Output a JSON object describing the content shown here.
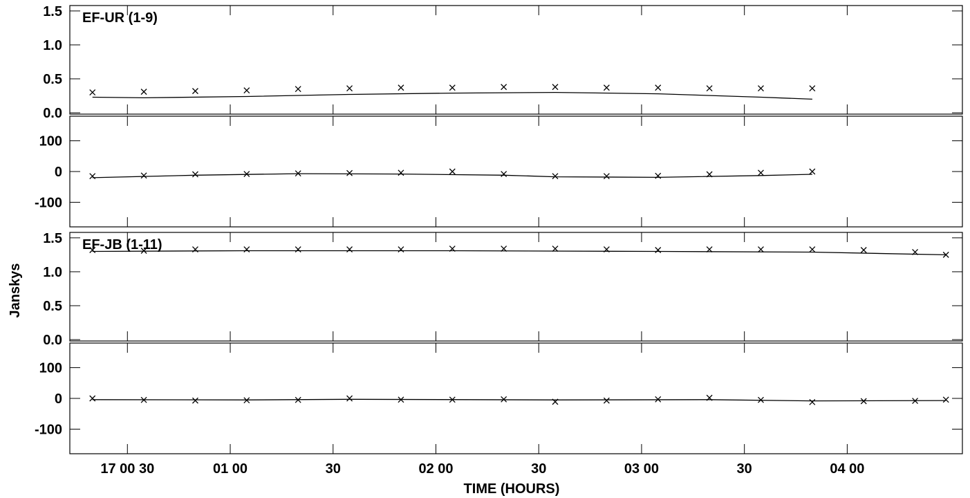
{
  "chart_data": [
    {
      "type": "scatter",
      "baseline": "EF-UR (1-9)",
      "quantity": "amplitude",
      "title": "EF-UR (1-9)",
      "ylim": [
        -0.02,
        1.58
      ],
      "yticks": [
        0.0,
        0.5,
        1.0,
        1.5
      ],
      "ytick_labels": [
        "0.0",
        "0.5",
        "1.0",
        "1.5"
      ],
      "points": [
        {
          "x": 0.33,
          "y": 0.3
        },
        {
          "x": 0.58,
          "y": 0.31
        },
        {
          "x": 0.83,
          "y": 0.32
        },
        {
          "x": 1.08,
          "y": 0.33
        },
        {
          "x": 1.33,
          "y": 0.35
        },
        {
          "x": 1.58,
          "y": 0.36
        },
        {
          "x": 1.83,
          "y": 0.37
        },
        {
          "x": 2.08,
          "y": 0.37
        },
        {
          "x": 2.33,
          "y": 0.38
        },
        {
          "x": 2.58,
          "y": 0.38
        },
        {
          "x": 2.83,
          "y": 0.37
        },
        {
          "x": 3.08,
          "y": 0.37
        },
        {
          "x": 3.33,
          "y": 0.36
        },
        {
          "x": 3.58,
          "y": 0.36
        },
        {
          "x": 3.83,
          "y": 0.36
        }
      ],
      "model": [
        {
          "x": 0.33,
          "y": 0.23
        },
        {
          "x": 0.58,
          "y": 0.22
        },
        {
          "x": 1.08,
          "y": 0.24
        },
        {
          "x": 1.58,
          "y": 0.27
        },
        {
          "x": 2.08,
          "y": 0.29
        },
        {
          "x": 2.58,
          "y": 0.3
        },
        {
          "x": 3.08,
          "y": 0.28
        },
        {
          "x": 3.58,
          "y": 0.23
        },
        {
          "x": 3.83,
          "y": 0.2
        }
      ]
    },
    {
      "type": "scatter",
      "baseline": "EF-UR (1-9)",
      "quantity": "phase",
      "ylim": [
        -180,
        180
      ],
      "yticks": [
        -100,
        0,
        100
      ],
      "ytick_labels": [
        "-100",
        "0",
        "100"
      ],
      "points": [
        {
          "x": 0.33,
          "y": -15
        },
        {
          "x": 0.58,
          "y": -13
        },
        {
          "x": 0.83,
          "y": -9
        },
        {
          "x": 1.08,
          "y": -8
        },
        {
          "x": 1.33,
          "y": -6
        },
        {
          "x": 1.58,
          "y": -5
        },
        {
          "x": 1.83,
          "y": -4
        },
        {
          "x": 2.08,
          "y": 0
        },
        {
          "x": 2.33,
          "y": -8
        },
        {
          "x": 2.58,
          "y": -15
        },
        {
          "x": 2.83,
          "y": -15
        },
        {
          "x": 3.08,
          "y": -14
        },
        {
          "x": 3.33,
          "y": -9
        },
        {
          "x": 3.58,
          "y": -4
        },
        {
          "x": 3.83,
          "y": 0
        }
      ],
      "model": [
        {
          "x": 0.33,
          "y": -20
        },
        {
          "x": 0.83,
          "y": -12
        },
        {
          "x": 1.33,
          "y": -7
        },
        {
          "x": 1.83,
          "y": -8
        },
        {
          "x": 2.33,
          "y": -12
        },
        {
          "x": 2.58,
          "y": -17
        },
        {
          "x": 3.08,
          "y": -19
        },
        {
          "x": 3.58,
          "y": -13
        },
        {
          "x": 3.83,
          "y": -9
        }
      ]
    },
    {
      "type": "scatter",
      "baseline": "EF-JB (1-11)",
      "quantity": "amplitude",
      "title": "EF-JB (1-11)",
      "ylim": [
        -0.02,
        1.58
      ],
      "yticks": [
        0.0,
        0.5,
        1.0,
        1.5
      ],
      "ytick_labels": [
        "0.0",
        "0.5",
        "1.0",
        "1.5"
      ],
      "points": [
        {
          "x": 0.33,
          "y": 1.32
        },
        {
          "x": 0.58,
          "y": 1.31
        },
        {
          "x": 0.83,
          "y": 1.33
        },
        {
          "x": 1.08,
          "y": 1.33
        },
        {
          "x": 1.33,
          "y": 1.33
        },
        {
          "x": 1.58,
          "y": 1.33
        },
        {
          "x": 1.83,
          "y": 1.33
        },
        {
          "x": 2.08,
          "y": 1.34
        },
        {
          "x": 2.33,
          "y": 1.34
        },
        {
          "x": 2.58,
          "y": 1.34
        },
        {
          "x": 2.83,
          "y": 1.33
        },
        {
          "x": 3.08,
          "y": 1.32
        },
        {
          "x": 3.33,
          "y": 1.33
        },
        {
          "x": 3.58,
          "y": 1.33
        },
        {
          "x": 3.83,
          "y": 1.33
        },
        {
          "x": 4.08,
          "y": 1.32
        },
        {
          "x": 4.33,
          "y": 1.29
        },
        {
          "x": 4.48,
          "y": 1.25
        }
      ],
      "model": [
        {
          "x": 0.33,
          "y": 1.3
        },
        {
          "x": 1.08,
          "y": 1.31
        },
        {
          "x": 2.08,
          "y": 1.31
        },
        {
          "x": 3.08,
          "y": 1.3
        },
        {
          "x": 3.83,
          "y": 1.29
        },
        {
          "x": 4.48,
          "y": 1.25
        }
      ]
    },
    {
      "type": "scatter",
      "baseline": "EF-JB (1-11)",
      "quantity": "phase",
      "ylim": [
        -180,
        180
      ],
      "yticks": [
        -100,
        0,
        100
      ],
      "ytick_labels": [
        "-100",
        "0",
        "100"
      ],
      "points": [
        {
          "x": 0.33,
          "y": 0
        },
        {
          "x": 0.58,
          "y": -5
        },
        {
          "x": 0.83,
          "y": -7
        },
        {
          "x": 1.08,
          "y": -6
        },
        {
          "x": 1.33,
          "y": -5
        },
        {
          "x": 1.58,
          "y": 0
        },
        {
          "x": 1.83,
          "y": -4
        },
        {
          "x": 2.08,
          "y": -4
        },
        {
          "x": 2.33,
          "y": -3
        },
        {
          "x": 2.58,
          "y": -11
        },
        {
          "x": 2.83,
          "y": -7
        },
        {
          "x": 3.08,
          "y": -3
        },
        {
          "x": 3.33,
          "y": 2
        },
        {
          "x": 3.58,
          "y": -5
        },
        {
          "x": 3.83,
          "y": -12
        },
        {
          "x": 4.08,
          "y": -9
        },
        {
          "x": 4.33,
          "y": -8
        },
        {
          "x": 4.48,
          "y": -4
        }
      ],
      "model": [
        {
          "x": 0.33,
          "y": -4
        },
        {
          "x": 1.08,
          "y": -5
        },
        {
          "x": 1.58,
          "y": -3
        },
        {
          "x": 2.58,
          "y": -5
        },
        {
          "x": 3.33,
          "y": -4
        },
        {
          "x": 3.83,
          "y": -8
        },
        {
          "x": 4.48,
          "y": -7
        }
      ]
    }
  ],
  "x_axis": {
    "label": "TIME (HOURS)",
    "range_hours": [
      0.22,
      4.56
    ],
    "ticks": [
      {
        "h": 0.5,
        "label": "17 00 30"
      },
      {
        "h": 1.0,
        "label": "01 00"
      },
      {
        "h": 1.5,
        "label": "30"
      },
      {
        "h": 2.0,
        "label": "02 00"
      },
      {
        "h": 2.5,
        "label": "30"
      },
      {
        "h": 3.0,
        "label": "03 00"
      },
      {
        "h": 3.5,
        "label": "30"
      },
      {
        "h": 4.0,
        "label": "04 00"
      }
    ]
  },
  "y_axis_label": "Janskys"
}
